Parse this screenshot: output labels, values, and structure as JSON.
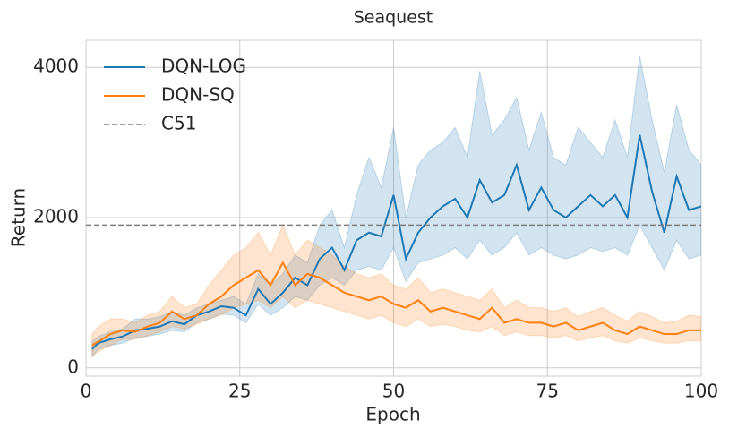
{
  "chart_data": {
    "type": "line",
    "title": "Seaquest",
    "x_label": "Epoch",
    "y_label": "Return",
    "x": [
      1,
      2,
      4,
      6,
      8,
      10,
      12,
      14,
      16,
      18,
      20,
      22,
      24,
      26,
      28,
      30,
      32,
      34,
      36,
      38,
      40,
      42,
      44,
      46,
      48,
      50,
      52,
      54,
      56,
      58,
      60,
      62,
      64,
      66,
      68,
      70,
      72,
      74,
      76,
      78,
      80,
      82,
      84,
      86,
      88,
      90,
      92,
      94,
      96,
      98,
      100
    ],
    "series": [
      {
        "name": "DQN-LOG",
        "color": "#1f77b4",
        "values": [
          250,
          330,
          380,
          420,
          500,
          520,
          550,
          620,
          580,
          700,
          750,
          820,
          800,
          700,
          1050,
          850,
          1000,
          1200,
          1100,
          1450,
          1600,
          1300,
          1700,
          1800,
          1750,
          2300,
          1450,
          1800,
          2000,
          2150,
          2250,
          2000,
          2500,
          2200,
          2300,
          2700,
          2100,
          2400,
          2100,
          2000,
          2150,
          2300,
          2150,
          2300,
          2000,
          3100,
          2350,
          1800,
          2550,
          2100,
          2150
        ],
        "lower": [
          150,
          250,
          300,
          330,
          400,
          420,
          450,
          500,
          480,
          600,
          650,
          720,
          700,
          600,
          850,
          700,
          800,
          950,
          900,
          1100,
          1200,
          1100,
          1300,
          1350,
          1300,
          1600,
          1150,
          1400,
          1450,
          1500,
          1600,
          1450,
          1700,
          1500,
          1600,
          1800,
          1500,
          1600,
          1500,
          1450,
          1500,
          1600,
          1550,
          1600,
          1500,
          1900,
          1600,
          1300,
          1700,
          1450,
          1500
        ],
        "upper": [
          350,
          420,
          480,
          520,
          650,
          650,
          680,
          750,
          700,
          800,
          850,
          900,
          950,
          850,
          1250,
          1100,
          1250,
          1500,
          1400,
          1900,
          2100,
          1600,
          2300,
          2800,
          2400,
          3200,
          2000,
          2700,
          2900,
          3000,
          3200,
          2800,
          3950,
          3100,
          3300,
          3600,
          2900,
          3400,
          2800,
          2700,
          3200,
          3000,
          2800,
          3300,
          2800,
          4150,
          3300,
          2600,
          3500,
          2900,
          2700
        ]
      },
      {
        "name": "DQN-SQ",
        "color": "#ff7f0e",
        "values": [
          300,
          350,
          450,
          500,
          480,
          550,
          600,
          750,
          650,
          700,
          850,
          950,
          1100,
          1200,
          1300,
          1100,
          1400,
          1100,
          1250,
          1200,
          1100,
          1000,
          950,
          900,
          950,
          850,
          800,
          900,
          750,
          800,
          750,
          700,
          650,
          800,
          600,
          650,
          600,
          600,
          550,
          600,
          500,
          550,
          600,
          500,
          450,
          550,
          500,
          450,
          450,
          500,
          500
        ],
        "lower": [
          150,
          220,
          300,
          380,
          380,
          430,
          480,
          550,
          520,
          580,
          650,
          700,
          800,
          850,
          900,
          800,
          950,
          800,
          900,
          850,
          800,
          750,
          700,
          650,
          700,
          600,
          550,
          650,
          550,
          580,
          550,
          500,
          480,
          550,
          430,
          480,
          430,
          430,
          400,
          430,
          360,
          400,
          430,
          360,
          330,
          400,
          360,
          330,
          330,
          360,
          360
        ],
        "upper": [
          450,
          550,
          650,
          650,
          600,
          700,
          750,
          950,
          800,
          850,
          1100,
          1300,
          1500,
          1600,
          1800,
          1500,
          1900,
          1500,
          1700,
          1600,
          1500,
          1350,
          1250,
          1200,
          1250,
          1100,
          1050,
          1200,
          1000,
          1050,
          1000,
          950,
          900,
          1050,
          800,
          900,
          800,
          800,
          750,
          800,
          680,
          750,
          800,
          700,
          620,
          750,
          680,
          600,
          620,
          700,
          680
        ]
      }
    ],
    "reference_line": {
      "name": "C51",
      "value": 1900,
      "color": "#7f7f7f"
    },
    "xlim": [
      0,
      100
    ],
    "ylim": [
      -110,
      4360
    ],
    "xticks": [
      0,
      25,
      50,
      75,
      100
    ],
    "yticks": [
      0,
      2000,
      4000
    ],
    "grid": true,
    "legend": "upper left"
  }
}
